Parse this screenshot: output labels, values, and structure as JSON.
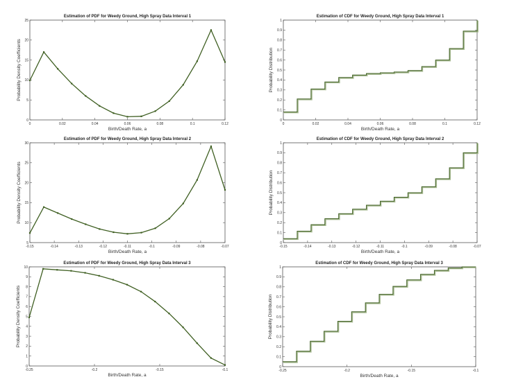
{
  "colors": {
    "line": "#3f5f22",
    "axis": "#555555"
  },
  "chart_data": [
    {
      "type": "line",
      "title": "Estimation of PDF for Weedy Ground, High Spray Data Interval 1",
      "xlabel": "Birth/Death Rate, a",
      "ylabel": "Probability Density Coefficients",
      "xlim": [
        0,
        0.12
      ],
      "ylim": [
        0,
        25
      ],
      "xticks": [
        0,
        0.02,
        0.04,
        0.06,
        0.08,
        0.1,
        0.12
      ],
      "xtick_labels": [
        "0",
        "0.02",
        "0.04",
        "0.06",
        "0.08",
        "0.1",
        "0.12"
      ],
      "yticks": [
        0,
        5,
        10,
        15,
        20,
        25
      ],
      "ytick_labels": [
        "0",
        "5",
        "10",
        "15",
        "20",
        "25"
      ],
      "values": [
        9.9,
        17,
        12.8,
        9.1,
        6,
        3.5,
        1.7,
        0.8,
        0.9,
        2.2,
        4.7,
        8.8,
        14.7,
        22.5,
        14.5
      ]
    },
    {
      "type": "line",
      "title": "Estimation of CDF for Weedy Ground, High Spray Data Interval 1",
      "xlabel": "Birth/Death Rate, a",
      "ylabel": "Probability Distribution",
      "step": true,
      "xlim": [
        0,
        0.12
      ],
      "ylim": [
        0,
        1
      ],
      "xticks": [
        0,
        0.02,
        0.04,
        0.06,
        0.08,
        0.1,
        0.12
      ],
      "xtick_labels": [
        "0",
        "0.02",
        "0.04",
        "0.06",
        "0.08",
        "0.1",
        "0.12"
      ],
      "yticks": [
        0,
        0.1,
        0.2,
        0.3,
        0.4,
        0.5,
        0.6,
        0.7,
        0.8,
        0.9,
        1
      ],
      "ytick_labels": [
        "0",
        "0.1",
        "0.2",
        "0.3",
        "0.4",
        "0.5",
        "0.6",
        "0.7",
        "0.8",
        "0.9",
        "1"
      ],
      "values": [
        0.08,
        0.21,
        0.31,
        0.38,
        0.425,
        0.45,
        0.465,
        0.472,
        0.48,
        0.495,
        0.535,
        0.6,
        0.715,
        0.89,
        1
      ]
    },
    {
      "type": "line",
      "title": "Estimation of PDF for Weedy Ground, High Spray Data Interval 2",
      "xlabel": "Birth/Death Rate, a",
      "ylabel": "Probability Density Coefficients",
      "xlim": [
        -0.15,
        -0.07
      ],
      "ylim": [
        5,
        30
      ],
      "xticks": [
        -0.15,
        -0.14,
        -0.13,
        -0.12,
        -0.11,
        -0.1,
        -0.09,
        -0.08,
        -0.07
      ],
      "xtick_labels": [
        "-0.15",
        "-0.14",
        "-0.13",
        "-0.12",
        "-0.11",
        "-0.1",
        "-0.09",
        "-0.08",
        "-0.07"
      ],
      "yticks": [
        5,
        10,
        15,
        20,
        25,
        30
      ],
      "ytick_labels": [
        "5",
        "10",
        "15",
        "20",
        "25",
        "30"
      ],
      "values": [
        7.4,
        13.9,
        12.4,
        10.9,
        9.6,
        8.4,
        7.6,
        7.2,
        7.5,
        8.6,
        11,
        14.8,
        20.7,
        29.1,
        18.2
      ]
    },
    {
      "type": "line",
      "title": "Estimation of CDF for Weedy Ground, High Spray Data Interval 2",
      "xlabel": "Birth/Death Rate, a",
      "ylabel": "Probability Distribution",
      "step": true,
      "xlim": [
        -0.15,
        -0.07
      ],
      "ylim": [
        0,
        1
      ],
      "xticks": [
        -0.15,
        -0.14,
        -0.13,
        -0.12,
        -0.11,
        -0.1,
        -0.09,
        -0.08,
        -0.07
      ],
      "xtick_labels": [
        "-0.15",
        "-0.14",
        "-0.13",
        "-0.12",
        "-0.11",
        "-0.1",
        "-0.09",
        "-0.08",
        "-0.07"
      ],
      "yticks": [
        0,
        0.1,
        0.2,
        0.3,
        0.4,
        0.5,
        0.6,
        0.7,
        0.8,
        0.9,
        1
      ],
      "ytick_labels": [
        "0",
        "0.1",
        "0.2",
        "0.3",
        "0.4",
        "0.5",
        "0.6",
        "0.7",
        "0.8",
        "0.9",
        "1"
      ],
      "values": [
        0.04,
        0.115,
        0.18,
        0.24,
        0.29,
        0.335,
        0.375,
        0.415,
        0.455,
        0.5,
        0.56,
        0.64,
        0.75,
        0.9,
        1
      ]
    },
    {
      "type": "line",
      "title": "Estimation of PDF for Weedy Ground, High Spray Data Interval 3",
      "xlabel": "Birth/Death Rate, a",
      "ylabel": "Probability Density Coefficients",
      "xlim": [
        -0.25,
        -0.1
      ],
      "ylim": [
        0,
        10
      ],
      "xticks": [
        -0.25,
        -0.2,
        -0.15,
        -0.1
      ],
      "xtick_labels": [
        "-0.25",
        "-0.2",
        "-0.15",
        "-0.1"
      ],
      "yticks": [
        0,
        1,
        2,
        3,
        4,
        5,
        6,
        7,
        8,
        9,
        10
      ],
      "ytick_labels": [
        "0",
        "1",
        "2",
        "3",
        "4",
        "5",
        "6",
        "7",
        "8",
        "9",
        "10"
      ],
      "values": [
        4.9,
        9.8,
        9.7,
        9.6,
        9.4,
        9.1,
        8.7,
        8.2,
        7.5,
        6.5,
        5.3,
        3.9,
        2.3,
        0.8,
        0.1
      ]
    },
    {
      "type": "line",
      "title": "Estimation of CDF for Weedy Ground, High Spray Data Interval 3",
      "xlabel": "Birth/Death Rate, a",
      "ylabel": "Probability Distribution",
      "step": true,
      "xlim": [
        -0.25,
        -0.1
      ],
      "ylim": [
        0,
        1
      ],
      "xticks": [
        -0.25,
        -0.2,
        -0.15,
        -0.1
      ],
      "xtick_labels": [
        "-0.25",
        "-0.2",
        "-0.15",
        "-0.1"
      ],
      "yticks": [
        0,
        0.1,
        0.2,
        0.3,
        0.4,
        0.5,
        0.6,
        0.7,
        0.8,
        0.9,
        1
      ],
      "ytick_labels": [
        "0",
        "0.1",
        "0.2",
        "0.3",
        "0.4",
        "0.5",
        "0.6",
        "0.7",
        "0.8",
        "0.9",
        "1"
      ],
      "values": [
        0.05,
        0.155,
        0.255,
        0.355,
        0.455,
        0.55,
        0.64,
        0.725,
        0.805,
        0.87,
        0.925,
        0.965,
        0.99,
        1.0,
        1
      ]
    }
  ]
}
